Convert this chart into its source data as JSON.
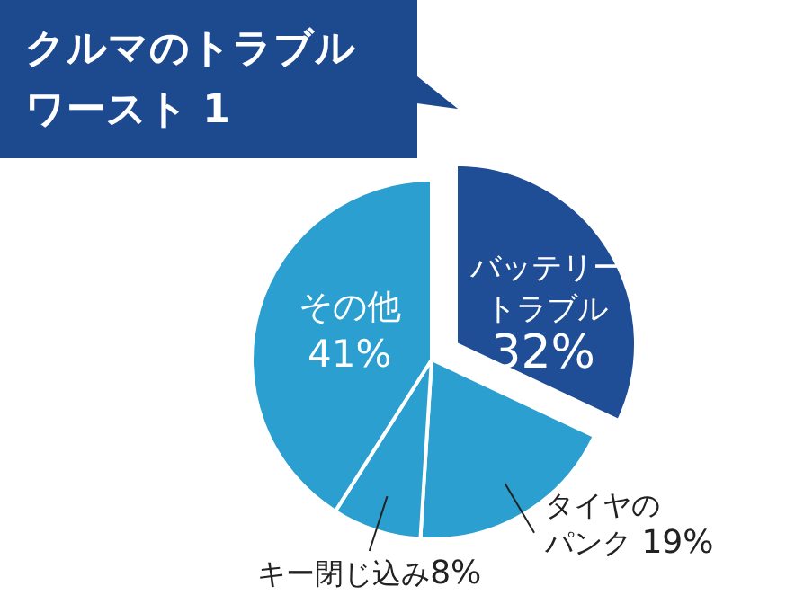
{
  "chart_data": {
    "type": "pie",
    "title": "クルマのトラブルワースト 1",
    "categories": [
      "バッテリートラブル",
      "タイヤのパンク",
      "キー閉じ込み",
      "その他"
    ],
    "value_labels": [
      "32%",
      "19%",
      "8%",
      "41%"
    ],
    "values": [
      32,
      19,
      8,
      41
    ],
    "colors": [
      "#1f4e96",
      "#2a9fd0",
      "#2a9fd0",
      "#2a9fd0"
    ]
  }
}
